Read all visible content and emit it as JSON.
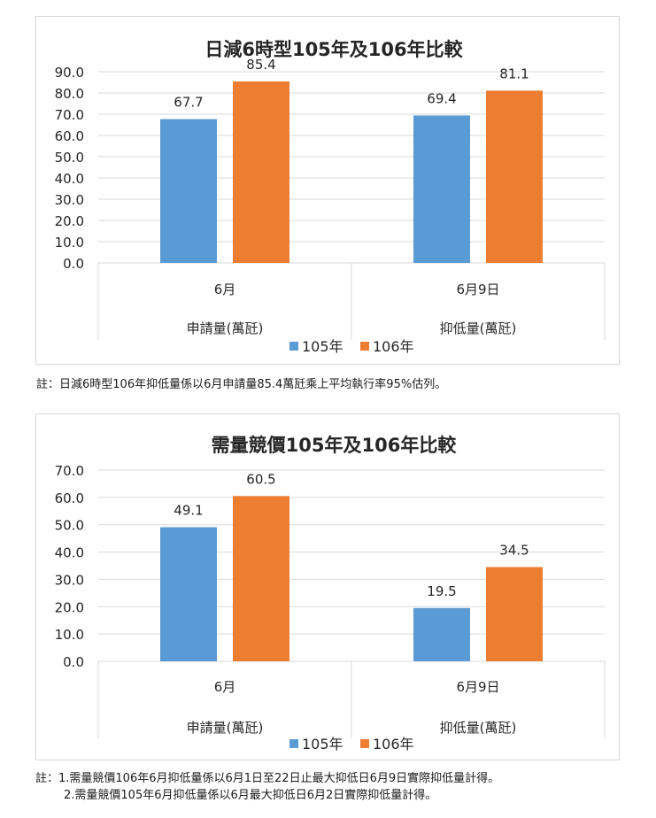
{
  "colors": {
    "series_105": "#5b9bd5",
    "series_106": "#ed7d31",
    "grid": "#d9d9d9"
  },
  "chart_data": [
    {
      "type": "bar",
      "title": "日減6時型105年及106年比較",
      "categories": [
        "6月",
        "6月9日"
      ],
      "group_labels": [
        "申請量(萬瓩)",
        "抑低量(萬瓩)"
      ],
      "series": [
        {
          "name": "105年",
          "values": [
            67.7,
            69.4
          ]
        },
        {
          "name": "106年",
          "values": [
            85.4,
            81.1
          ]
        }
      ],
      "value_labels": [
        [
          "67.7",
          "69.4"
        ],
        [
          "85.4",
          "81.1"
        ]
      ],
      "yticks": [
        "0.0",
        "10.0",
        "20.0",
        "30.0",
        "40.0",
        "50.0",
        "60.0",
        "70.0",
        "80.0",
        "90.0"
      ],
      "ylim": [
        0,
        90
      ],
      "grid": true,
      "legend_position": "bottom"
    },
    {
      "type": "bar",
      "title": "需量競價105年及106年比較",
      "categories": [
        "6月",
        "6月9日"
      ],
      "group_labels": [
        "申請量(萬瓩)",
        "抑低量(萬瓩)"
      ],
      "series": [
        {
          "name": "105年",
          "values": [
            49.1,
            19.5
          ]
        },
        {
          "name": "106年",
          "values": [
            60.5,
            34.5
          ]
        }
      ],
      "value_labels": [
        [
          "49.1",
          "19.5"
        ],
        [
          "60.5",
          "34.5"
        ]
      ],
      "yticks": [
        "0.0",
        "10.0",
        "20.0",
        "30.0",
        "40.0",
        "50.0",
        "60.0",
        "70.0"
      ],
      "ylim": [
        0,
        70
      ],
      "grid": true,
      "legend_position": "bottom"
    }
  ],
  "notes": {
    "note1": "註：日減6時型106年抑低量係以6月申請量85.4萬瓩乘上平均執行率95%估列。",
    "note2_line1": "註：1.需量競價106年6月抑低量係以6月1日至22日止最大抑低日6月9日實際抑低量計得。",
    "note2_line2": "2.需量競價105年6月抑低量係以6月最大抑低日6月2日實際抑低量計得。"
  }
}
